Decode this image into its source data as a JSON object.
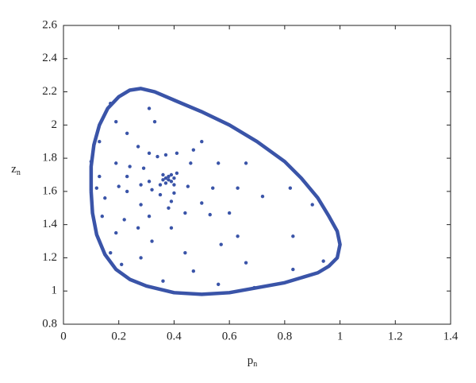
{
  "chart_data": {
    "type": "scatter",
    "xlabel": "p",
    "xlabel_sub": "n",
    "ylabel": "z",
    "ylabel_sub": "n",
    "xlim": [
      0,
      1.4
    ],
    "ylim": [
      0.8,
      2.6
    ],
    "xticks": [
      0,
      0.2,
      0.4,
      0.6,
      0.8,
      1,
      1.2,
      1.4
    ],
    "yticks": [
      0.8,
      1,
      1.2,
      1.4,
      1.6,
      1.8,
      2,
      2.2,
      2.4,
      2.6
    ],
    "series": [
      {
        "style": "line",
        "color": "#3a54a8",
        "x": [
          0.1,
          0.1,
          0.11,
          0.13,
          0.16,
          0.2,
          0.24,
          0.28,
          0.33,
          0.4,
          0.5,
          0.6,
          0.7,
          0.8,
          0.86,
          0.92,
          0.96,
          0.99,
          1.0,
          0.99,
          0.96,
          0.92,
          0.86,
          0.8,
          0.7,
          0.6,
          0.5,
          0.4,
          0.3,
          0.24,
          0.19,
          0.15,
          0.12,
          0.105,
          0.1
        ],
        "y": [
          1.6,
          1.75,
          1.88,
          2.0,
          2.1,
          2.17,
          2.21,
          2.22,
          2.2,
          2.15,
          2.08,
          2.0,
          1.9,
          1.78,
          1.68,
          1.56,
          1.45,
          1.36,
          1.28,
          1.2,
          1.15,
          1.11,
          1.08,
          1.05,
          1.02,
          0.99,
          0.98,
          0.99,
          1.03,
          1.07,
          1.13,
          1.22,
          1.34,
          1.47,
          1.6
        ]
      },
      {
        "style": "dots",
        "color": "#3a54a8",
        "x": [
          0.17,
          0.19,
          0.23,
          0.31,
          0.33,
          0.27,
          0.31,
          0.34,
          0.37,
          0.41,
          0.47,
          0.5,
          0.46,
          0.56,
          0.66,
          0.13,
          0.1,
          0.19,
          0.24,
          0.29,
          0.12,
          0.2,
          0.28,
          0.31,
          0.45,
          0.54,
          0.63,
          0.72,
          0.82,
          0.15,
          0.23,
          0.32,
          0.35,
          0.4,
          0.5,
          0.6,
          0.9,
          0.14,
          0.28,
          0.39,
          0.44,
          0.53,
          0.22,
          0.31,
          0.38,
          0.63,
          0.83,
          0.19,
          0.27,
          0.32,
          0.17,
          0.28,
          0.39,
          0.44,
          0.47,
          0.57,
          0.66,
          0.83,
          0.94,
          0.21,
          0.36,
          0.56,
          0.69,
          0.13,
          0.23,
          0.38,
          0.37,
          0.39,
          0.38,
          0.37,
          0.4,
          0.36,
          0.39,
          0.36,
          0.4,
          0.35,
          0.41
        ],
        "y": [
          2.13,
          2.02,
          1.95,
          2.1,
          2.02,
          1.87,
          1.83,
          1.81,
          1.82,
          1.83,
          1.85,
          1.9,
          1.77,
          1.77,
          1.77,
          1.9,
          1.78,
          1.77,
          1.75,
          1.74,
          1.62,
          1.63,
          1.64,
          1.66,
          1.63,
          1.62,
          1.62,
          1.57,
          1.62,
          1.56,
          1.6,
          1.61,
          1.58,
          1.59,
          1.53,
          1.47,
          1.52,
          1.45,
          1.52,
          1.54,
          1.47,
          1.46,
          1.43,
          1.45,
          1.5,
          1.33,
          1.33,
          1.35,
          1.38,
          1.3,
          1.23,
          1.2,
          1.38,
          1.23,
          1.12,
          1.28,
          1.17,
          1.13,
          1.18,
          1.16,
          1.06,
          1.04,
          1.02,
          1.69,
          1.69,
          1.67,
          1.68,
          1.66,
          1.69,
          1.65,
          1.68,
          1.67,
          1.7,
          1.7,
          1.64,
          1.64,
          1.71
        ]
      }
    ]
  }
}
